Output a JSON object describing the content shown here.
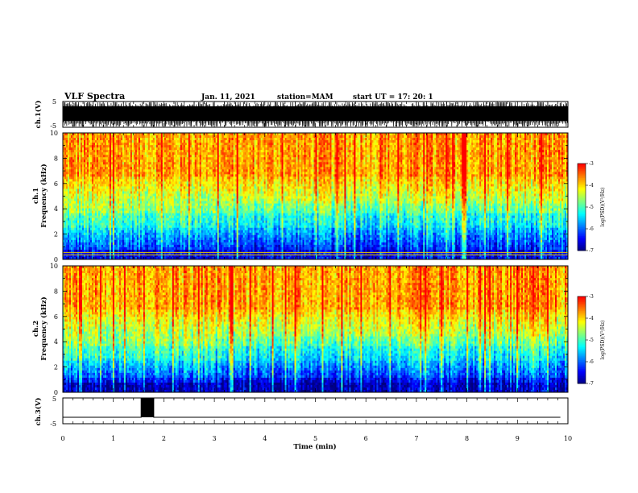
{
  "header": {
    "title": "VLF Spectra",
    "date": "Jan. 11, 2021",
    "station": "station=MAM",
    "start": "start  UT  =   17: 20: 1"
  },
  "chart_data": [
    {
      "type": "line",
      "name": "ch1-waveform",
      "ylabel": "ch.1(V)",
      "ylim": [
        -5,
        5
      ],
      "yticks": [
        "5",
        "-5"
      ],
      "description_of_values": "dense oscillating waveform filling the range"
    },
    {
      "type": "heatmap",
      "name": "ch1-spectrogram",
      "ylabel": "ch.1  Frequency  (kHz)",
      "ylabel_top": "ch.1",
      "ylabel_bottom": "Frequency  (kHz)",
      "xlim": [
        0,
        10
      ],
      "ylim": [
        0,
        10
      ],
      "yticks": [
        "0",
        "2",
        "4",
        "6",
        "8",
        "10"
      ],
      "colorbar": {
        "label": "log(PSD)(V²/Hz)",
        "ticks": [
          "-3",
          "-4",
          "-5",
          "-6",
          "-7"
        ],
        "range": [
          -7,
          -3
        ]
      }
    },
    {
      "type": "heatmap",
      "name": "ch2-spectrogram",
      "ylabel": "ch.2  Frequency  (kHz)",
      "ylabel_top": "ch.2",
      "ylabel_bottom": "Frequency  (kHz)",
      "xlim": [
        0,
        10
      ],
      "ylim": [
        0,
        10
      ],
      "yticks": [
        "0",
        "2",
        "4",
        "6",
        "8",
        "10"
      ],
      "colorbar": {
        "label": "log(PSD)(V²/Hz)",
        "ticks": [
          "-3",
          "-4",
          "-5",
          "-6",
          "-7"
        ],
        "range": [
          -7,
          -3
        ]
      }
    },
    {
      "type": "line",
      "name": "ch3-waveform",
      "ylabel": "ch.3(V)",
      "ylim": [
        -5,
        5
      ],
      "yticks": [
        "5",
        "-5"
      ],
      "x": [
        0,
        1.55,
        1.55,
        1.8,
        1.8,
        9.85
      ],
      "y": [
        -2.5,
        -2.5,
        5,
        5,
        -2.5,
        -2.5
      ],
      "xlabel": "Time  (min)",
      "xlim": [
        0,
        10
      ],
      "xticks": [
        "0",
        "1",
        "2",
        "3",
        "4",
        "5",
        "6",
        "7",
        "8",
        "9",
        "10"
      ]
    }
  ],
  "colors": {
    "scale": [
      "#00007f",
      "#0000ff",
      "#007fff",
      "#00ffff",
      "#7fff7f",
      "#ffff00",
      "#ff7f00",
      "#ff0000"
    ]
  }
}
